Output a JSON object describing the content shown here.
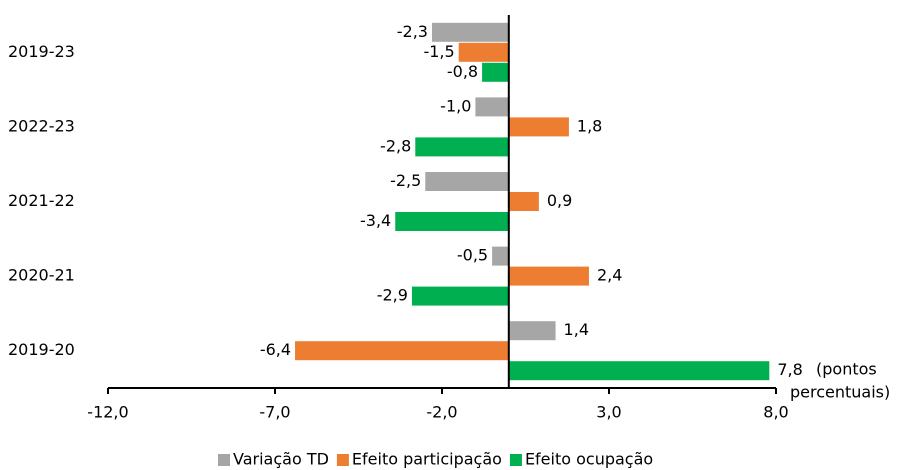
{
  "chart_data": {
    "type": "bar",
    "orientation": "horizontal",
    "categories": [
      "2019-23",
      "2022-23",
      "2021-22",
      "2020-21",
      "2019-20"
    ],
    "series": [
      {
        "name": "Variação TD",
        "color": "#a6a6a6",
        "values": [
          -2.3,
          -1.0,
          -2.5,
          -0.5,
          1.4
        ],
        "value_labels": [
          "-2,3",
          "-1,0",
          "-2,5",
          "-0,5",
          "1,4"
        ]
      },
      {
        "name": "Efeito participação",
        "color": "#ed7d31",
        "values": [
          -1.5,
          1.8,
          0.9,
          2.4,
          -6.4
        ],
        "value_labels": [
          "-1,5",
          "1,8",
          "0,9",
          "2,4",
          "-6,4"
        ]
      },
      {
        "name": "Efeito ocupação",
        "color": "#00b050",
        "values": [
          -0.8,
          -2.8,
          -3.4,
          -2.9,
          7.8
        ],
        "value_labels": [
          "-0,8",
          "-2,8",
          "-3,4",
          "-2,9",
          "7,8"
        ]
      }
    ],
    "xlim": [
      -12,
      8
    ],
    "xticks": [
      {
        "value": -12,
        "label": "-12,0"
      },
      {
        "value": -7,
        "label": "-7,0"
      },
      {
        "value": -2,
        "label": "-2,0"
      },
      {
        "value": 3,
        "label": "3,0"
      },
      {
        "value": 8,
        "label": "8,0"
      }
    ],
    "annotation": [
      "(pontos",
      "percentuais)"
    ],
    "legend": "bottom"
  }
}
